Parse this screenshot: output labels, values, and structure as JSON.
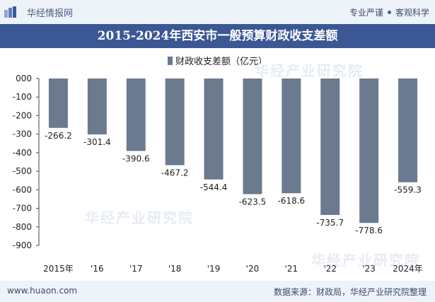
{
  "header": {
    "brand": "华经情报网",
    "tag1": "专业严谨",
    "tag2": "客观科学"
  },
  "colors": {
    "bar": "#6b7a8f",
    "title_bg": "#3b5894"
  },
  "watermark": "华经产业研究院",
  "footer": {
    "website": "www.huaon.com",
    "source": "数据来源：财政局，华经产业研究院整理"
  },
  "chart_data": {
    "type": "bar",
    "title": "2015-2024年西安市一般预算财政收支差额",
    "categories": [
      "2015年",
      "'16",
      "'17",
      "'18",
      "'19",
      "'20",
      "'21",
      "'22",
      "'23",
      "2024年"
    ],
    "series": [
      {
        "name": "财政收支差额（亿元）",
        "values": [
          -266.2,
          -301.4,
          -390.6,
          -467.2,
          -544.4,
          -623.5,
          -618.6,
          -735.7,
          -778.6,
          -559.3
        ],
        "labels": [
          "-266.2",
          "-301.4",
          "-390.6",
          "-467.2",
          "-544.4",
          "-623.5",
          "-618.6",
          "-735.7",
          "-778.6",
          "-559.3"
        ]
      }
    ],
    "ylim": [
      -900,
      0
    ],
    "yticks": [
      0,
      -100,
      -200,
      -300,
      -400,
      -500,
      -600,
      -700,
      -800,
      -900
    ],
    "ytick_labels": [
      "000",
      "-100",
      "-200",
      "-300",
      "-400",
      "-500",
      "-600",
      "-700",
      "-800",
      "-900"
    ],
    "grid": false,
    "legend_position": "top-center"
  }
}
